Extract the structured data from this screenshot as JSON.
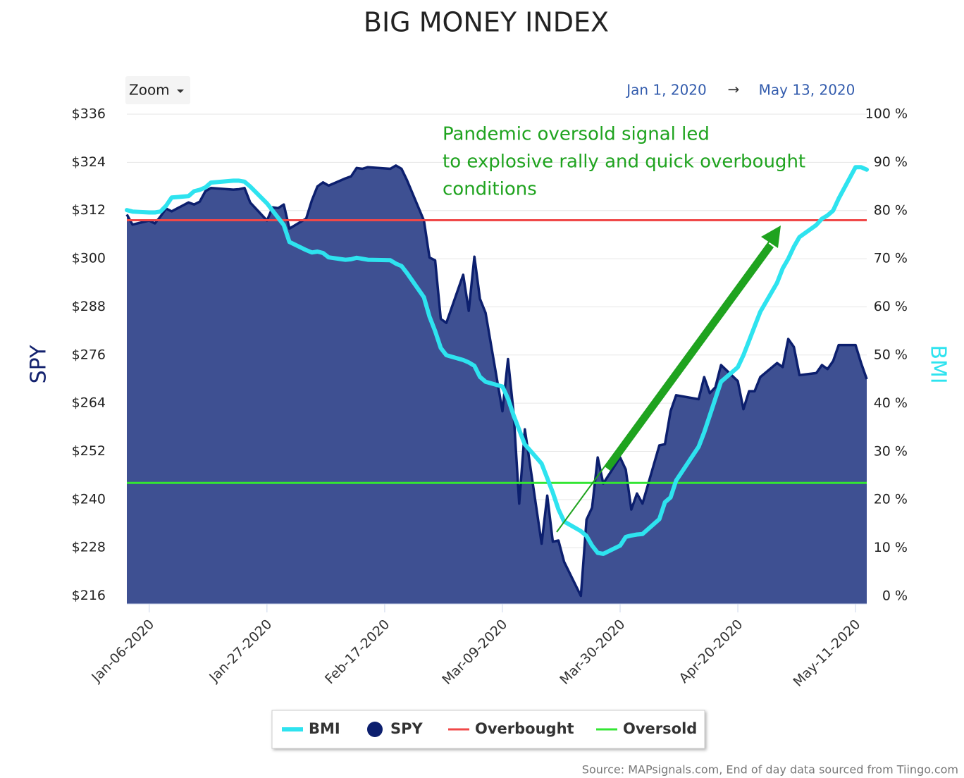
{
  "chart_data": {
    "type": "combo",
    "title": "BIG MONEY INDEX",
    "zoom_label": "Zoom",
    "range_start": "Jan 1, 2020",
    "range_separator": "→",
    "range_end": "May 13, 2020",
    "annotation": [
      "Pandemic oversold signal led",
      "to explosive rally and quick overbought",
      "conditions"
    ],
    "source": "Source: MAPsignals.com, End of day data sourced from Tiingo.com",
    "y_label": "SPY",
    "y2_label": "BMI",
    "x": [
      "2020-01-02",
      "2020-01-03",
      "2020-01-06",
      "2020-01-07",
      "2020-01-08",
      "2020-01-09",
      "2020-01-10",
      "2020-01-13",
      "2020-01-14",
      "2020-01-15",
      "2020-01-16",
      "2020-01-17",
      "2020-01-21",
      "2020-01-22",
      "2020-01-23",
      "2020-01-24",
      "2020-01-27",
      "2020-01-28",
      "2020-01-29",
      "2020-01-30",
      "2020-01-31",
      "2020-02-03",
      "2020-02-04",
      "2020-02-05",
      "2020-02-06",
      "2020-02-07",
      "2020-02-10",
      "2020-02-11",
      "2020-02-12",
      "2020-02-13",
      "2020-02-14",
      "2020-02-18",
      "2020-02-19",
      "2020-02-20",
      "2020-02-21",
      "2020-02-24",
      "2020-02-25",
      "2020-02-26",
      "2020-02-27",
      "2020-02-28",
      "2020-03-02",
      "2020-03-03",
      "2020-03-04",
      "2020-03-05",
      "2020-03-06",
      "2020-03-09",
      "2020-03-10",
      "2020-03-11",
      "2020-03-12",
      "2020-03-13",
      "2020-03-16",
      "2020-03-17",
      "2020-03-18",
      "2020-03-19",
      "2020-03-20",
      "2020-03-23",
      "2020-03-24",
      "2020-03-25",
      "2020-03-26",
      "2020-03-27",
      "2020-03-30",
      "2020-03-31",
      "2020-04-01",
      "2020-04-02",
      "2020-04-03",
      "2020-04-06",
      "2020-04-07",
      "2020-04-08",
      "2020-04-09",
      "2020-04-13",
      "2020-04-14",
      "2020-04-15",
      "2020-04-16",
      "2020-04-17",
      "2020-04-20",
      "2020-04-21",
      "2020-04-22",
      "2020-04-23",
      "2020-04-24",
      "2020-04-27",
      "2020-04-28",
      "2020-04-29",
      "2020-04-30",
      "2020-05-01",
      "2020-05-04",
      "2020-05-05",
      "2020-05-06",
      "2020-05-07",
      "2020-05-08",
      "2020-05-11",
      "2020-05-12",
      "2020-05-13"
    ],
    "series": [
      {
        "name": "BMI",
        "type": "line",
        "axis": "y2",
        "color": "#2ee3ef",
        "values": [
          80.1,
          79.8,
          79.6,
          79.6,
          79.8,
          81.0,
          82.7,
          83.0,
          84.0,
          84.3,
          84.8,
          85.8,
          86.2,
          86.2,
          86.0,
          85.0,
          81.5,
          80.0,
          78.5,
          77.0,
          73.5,
          71.8,
          71.3,
          71.5,
          71.2,
          70.3,
          69.8,
          69.9,
          70.2,
          70.0,
          69.8,
          69.7,
          69.0,
          68.5,
          67.0,
          62.0,
          58.0,
          55.0,
          51.5,
          50.0,
          49.0,
          48.5,
          47.8,
          45.5,
          44.5,
          43.5,
          41.0,
          37.5,
          34.5,
          31.5,
          27.5,
          24.5,
          21.5,
          18.0,
          15.5,
          13.5,
          12.5,
          10.5,
          9.0,
          8.8,
          10.5,
          12.3,
          12.6,
          12.8,
          12.9,
          16.0,
          19.5,
          20.5,
          24.0,
          31.0,
          34.0,
          37.5,
          41.0,
          44.5,
          47.5,
          50.0,
          53.0,
          56.0,
          59.0,
          65.0,
          68.0,
          70.0,
          72.5,
          74.5,
          77.0,
          78.3,
          79.0,
          80.0,
          82.5,
          89.0,
          89.0,
          88.5
        ]
      },
      {
        "name": "SPY",
        "type": "area",
        "color": "#0c1f6e",
        "fill": "#3e5092",
        "values": [
          311.0,
          308.5,
          309.5,
          308.8,
          310.5,
          312.5,
          311.8,
          314.0,
          313.5,
          314.2,
          316.8,
          317.6,
          317.2,
          317.3,
          317.6,
          314.0,
          309.5,
          312.8,
          312.6,
          313.5,
          307.5,
          310.0,
          314.5,
          318.0,
          319.0,
          318.2,
          320.0,
          320.5,
          322.6,
          322.4,
          322.8,
          322.4,
          323.2,
          322.4,
          319.5,
          309.5,
          300.3,
          299.6,
          285.0,
          284.0,
          296.0,
          287.0,
          300.5,
          290.0,
          286.5,
          262.0,
          275.0,
          261.5,
          239.0,
          257.5,
          229.0,
          241.0,
          229.5,
          229.8,
          224.5,
          216.0,
          235.0,
          238.0,
          250.5,
          244.0,
          250.5,
          247.5,
          237.5,
          241.5,
          239.0,
          253.5,
          253.8,
          262.0,
          266.0,
          265.0,
          270.5,
          266.5,
          268.0,
          273.5,
          269.5,
          262.5,
          267.0,
          267.0,
          270.5,
          274.0,
          273.0,
          280.0,
          278.0,
          271.0,
          271.5,
          273.5,
          272.5,
          274.5,
          278.5,
          278.5,
          274.0,
          270.0
        ]
      },
      {
        "name": "Overbought",
        "type": "hline",
        "axis": "y2",
        "color": "#f04848",
        "value": 78
      },
      {
        "name": "Oversold",
        "type": "hline",
        "axis": "y2",
        "color": "#33e633",
        "value": 23.5
      }
    ],
    "xlim": [
      "2020-01-02",
      "2020-05-13"
    ],
    "xticks": [
      {
        "value": "2020-01-06",
        "label": "Jan-06-2020"
      },
      {
        "value": "2020-01-27",
        "label": "Jan-27-2020"
      },
      {
        "value": "2020-02-17",
        "label": "Feb-17-2020"
      },
      {
        "value": "2020-03-09",
        "label": "Mar-09-2020"
      },
      {
        "value": "2020-03-30",
        "label": "Mar-30-2020"
      },
      {
        "value": "2020-04-20",
        "label": "Apr-20-2020"
      },
      {
        "value": "2020-05-11",
        "label": "May-11-2020"
      }
    ],
    "ylim": [
      214,
      336
    ],
    "yticks": [
      {
        "value": 216,
        "label": "$216"
      },
      {
        "value": 228,
        "label": "$228"
      },
      {
        "value": 240,
        "label": "$240"
      },
      {
        "value": 252,
        "label": "$252"
      },
      {
        "value": 264,
        "label": "$264"
      },
      {
        "value": 276,
        "label": "$276"
      },
      {
        "value": 288,
        "label": "$288"
      },
      {
        "value": 300,
        "label": "$300"
      },
      {
        "value": 312,
        "label": "$312"
      },
      {
        "value": 324,
        "label": "$324"
      },
      {
        "value": 336,
        "label": "$336"
      }
    ],
    "y2lim": [
      -1.6,
      100
    ],
    "y2ticks": [
      {
        "value": 0,
        "label": "0 %"
      },
      {
        "value": 10,
        "label": "10 %"
      },
      {
        "value": 20,
        "label": "20 %"
      },
      {
        "value": 30,
        "label": "30 %"
      },
      {
        "value": 40,
        "label": "40 %"
      },
      {
        "value": 50,
        "label": "50 %"
      },
      {
        "value": 60,
        "label": "60 %"
      },
      {
        "value": 70,
        "label": "70 %"
      },
      {
        "value": 80,
        "label": "80 %"
      },
      {
        "value": 90,
        "label": "90 %"
      },
      {
        "value": 100,
        "label": "100 %"
      }
    ],
    "grid": true
  }
}
